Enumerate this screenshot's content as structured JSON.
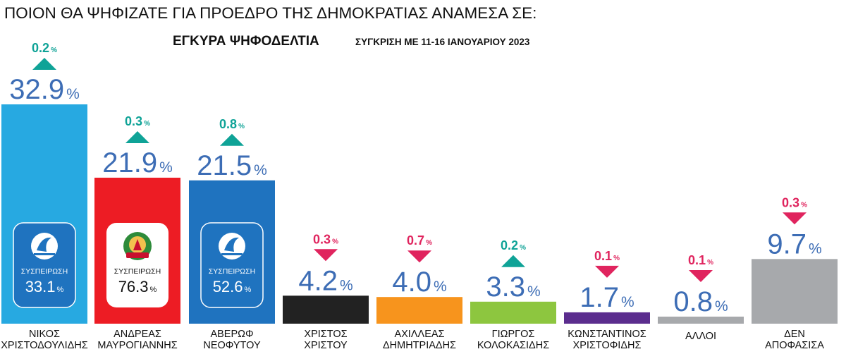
{
  "header": {
    "question": "ΠΟΙΟΝ ΘΑ ΨΗΦΙΖΑΤΕ ΓΙΑ ΠΡΟΕΔΡΟ ΤΗΣ ΔΗΜΟΚΡΑΤΙΑΣ ΑΝΑΜΕΣΑ ΣΕ:",
    "subtitle": "ΕΓΚΥΡΑ ΨΗΦΟΔΕΛΤΙΑ",
    "comparison": "ΣΥΓΚΡΙΣΗ ΜΕ 11-16 ΙΑΝΟΥΑΡΙΟΥ 2023"
  },
  "colors": {
    "value_text": "#3d6db5",
    "change_up": "#0fa397",
    "change_down": "#e0245e",
    "axis_label": "#111111"
  },
  "chart_data": {
    "type": "bar",
    "title": "ΠΟΙΟΝ ΘΑ ΨΗΦΙΖΑΤΕ ΓΙΑ ΠΡΟΕΔΡΟ ΤΗΣ ΔΗΜΟΚΡΑΤΙΑΣ ΑΝΑΜΕΣΑ ΣΕ:",
    "subtitle": "ΕΓΚΥΡΑ ΨΗΦΟΔΕΛΤΙΑ",
    "note": "ΣΥΓΚΡΙΣΗ ΜΕ 11-16 ΙΑΝΟΥΑΡΙΟΥ 2023",
    "unit": "%",
    "ylim": [
      0,
      32.9
    ],
    "grid": false,
    "bars": [
      {
        "label_lines": [
          "ΝΙΚΟΣ",
          "ΧΡΙΣΤΟΔΟΥΛΙΔΗΣ"
        ],
        "value": 32.9,
        "value_text": "32.9",
        "change": 0.2,
        "change_text": "0.2",
        "direction": "up",
        "color": "#27a9e1",
        "badge": {
          "logo": "disy-logo",
          "label": "ΣΥΣΠΕΙΡΩΣΗ",
          "value_text": "33.1",
          "value": 33.1,
          "style": "dark",
          "bg": "#1f73bf"
        }
      },
      {
        "label_lines": [
          "ΑΝΔΡΕΑΣ",
          "ΜΑΥΡΟΓΙΑΝΝΗΣ"
        ],
        "value": 21.9,
        "value_text": "21.9",
        "change": 0.3,
        "change_text": "0.3",
        "direction": "up",
        "color": "#ed1c24",
        "badge": {
          "logo": "akel-logo",
          "label": "ΣΥΣΠΕΙΡΩΣΗ",
          "value_text": "76.3",
          "value": 76.3,
          "style": "light",
          "bg": "#ffffff"
        }
      },
      {
        "label_lines": [
          "ΑΒΕΡΩΦ",
          "ΝΕΟΦΥΤΟΥ"
        ],
        "value": 21.5,
        "value_text": "21.5",
        "change": 0.8,
        "change_text": "0.8",
        "direction": "up",
        "color": "#1f73bf",
        "badge": {
          "logo": "disy-logo",
          "label": "ΣΥΣΠΕΙΡΩΣΗ",
          "value_text": "52.6",
          "value": 52.6,
          "style": "dark",
          "bg": "#1f73bf"
        }
      },
      {
        "label_lines": [
          "ΧΡΙΣΤΟΣ",
          "ΧΡΙΣΤΟΥ"
        ],
        "value": 4.2,
        "value_text": "4.2",
        "change": 0.3,
        "change_text": "0.3",
        "direction": "down",
        "color": "#222222"
      },
      {
        "label_lines": [
          "ΑΧΙΛΛΕΑΣ",
          "ΔΗΜΗΤΡΙΑΔΗΣ"
        ],
        "value": 4.0,
        "value_text": "4.0",
        "change": 0.7,
        "change_text": "0.7",
        "direction": "down",
        "color": "#f7941d"
      },
      {
        "label_lines": [
          "ΓΙΩΡΓΟΣ",
          "ΚΟΛΟΚΑΣΙΔΗΣ"
        ],
        "value": 3.3,
        "value_text": "3.3",
        "change": 0.2,
        "change_text": "0.2",
        "direction": "up",
        "color": "#8dc63f"
      },
      {
        "label_lines": [
          "ΚΩΝΣΤΑΝΤΙΝΟΣ",
          "ΧΡΙΣΤΟΦΙΔΗΣ"
        ],
        "value": 1.7,
        "value_text": "1.7",
        "change": 0.1,
        "change_text": "0.1",
        "direction": "down",
        "color": "#5b2d8e"
      },
      {
        "label_lines": [
          "ΑΛΛΟΙ"
        ],
        "value": 0.8,
        "value_text": "0.8",
        "change": 0.1,
        "change_text": "0.1",
        "direction": "down",
        "color": "#a7a9ac"
      },
      {
        "label_lines": [
          "ΔΕΝ",
          "ΑΠΟΦΑΣΙΣΑ"
        ],
        "value": 9.7,
        "value_text": "9.7",
        "change": 0.3,
        "change_text": "0.3",
        "direction": "down",
        "color": "#a7a9ac"
      }
    ]
  }
}
